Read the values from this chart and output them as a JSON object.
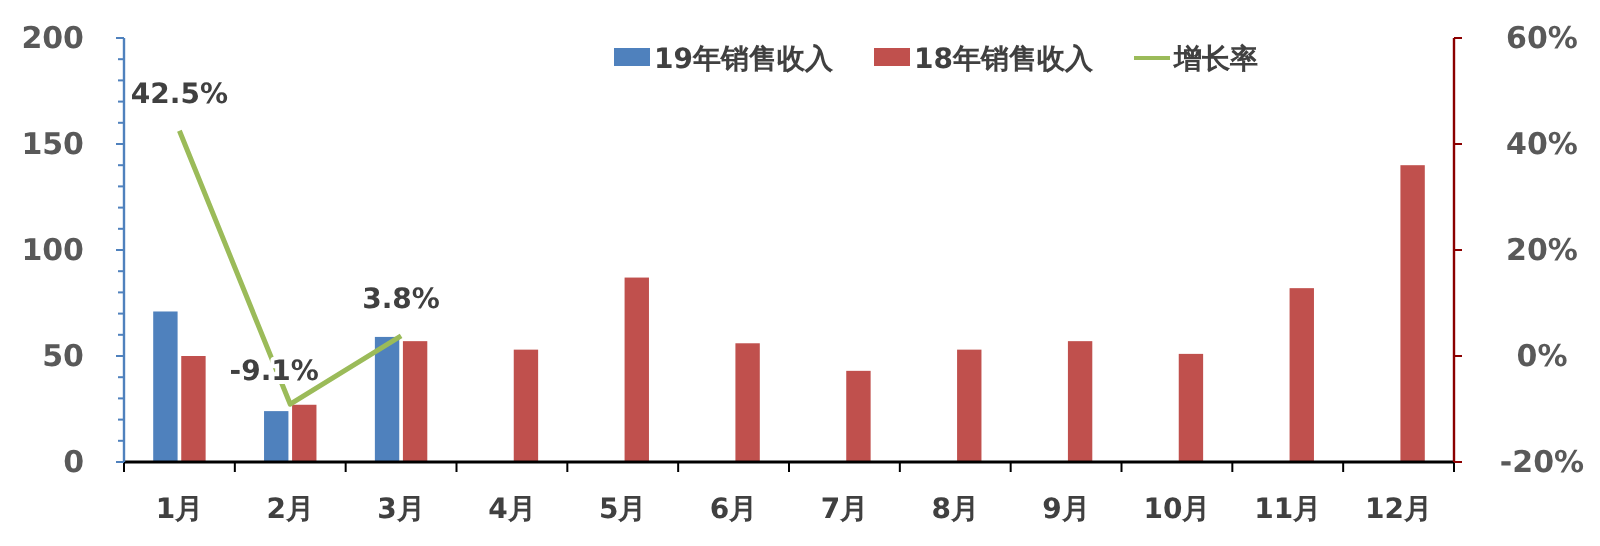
{
  "chart_data": {
    "type": "bar",
    "categories": [
      "1月",
      "2月",
      "3月",
      "4月",
      "5月",
      "6月",
      "7月",
      "8月",
      "9月",
      "10月",
      "11月",
      "12月"
    ],
    "series": [
      {
        "name": "19年销售收入",
        "color": "#4f81bd",
        "values": [
          71,
          24,
          59,
          null,
          null,
          null,
          null,
          null,
          null,
          null,
          null,
          null
        ]
      },
      {
        "name": "18年销售收入",
        "color": "#c0504d",
        "values": [
          50,
          27,
          57,
          53,
          87,
          56,
          43,
          53,
          57,
          51,
          82,
          140
        ]
      },
      {
        "name": "增长率",
        "type": "line",
        "axis": "y2",
        "color": "#9bbb59",
        "marker": "none",
        "values": [
          42.5,
          -9.1,
          3.8,
          null,
          null,
          null,
          null,
          null,
          null,
          null,
          null,
          null
        ],
        "value_labels": [
          "42.5%",
          "-9.1%",
          "3.8%",
          null,
          null,
          null,
          null,
          null,
          null,
          null,
          null,
          null
        ]
      }
    ],
    "ylim": [
      0,
      200
    ],
    "yticks": [
      0,
      {
        "value": 10,
        "label": null
      },
      {
        "value": 20,
        "label": null
      },
      {
        "value": 30,
        "label": null
      },
      {
        "value": 40,
        "label": null
      },
      50,
      {
        "value": 60,
        "label": null
      },
      {
        "value": 70,
        "label": null
      },
      {
        "value": 80,
        "label": null
      },
      {
        "value": 90,
        "label": null
      },
      100,
      {
        "value": 110,
        "label": null
      },
      {
        "value": 120,
        "label": null
      },
      {
        "value": 130,
        "label": null
      },
      {
        "value": 140,
        "label": null
      },
      150,
      {
        "value": 160,
        "label": null
      },
      {
        "value": 170,
        "label": null
      },
      {
        "value": 180,
        "label": null
      },
      {
        "value": 190,
        "label": null
      },
      200
    ],
    "y2lim": [
      -20,
      60
    ],
    "y2ticks": [
      {
        "value": -20,
        "label": "-20%"
      },
      {
        "value": 0,
        "label": "0%"
      },
      {
        "value": 20,
        "label": "20%"
      },
      {
        "value": 40,
        "label": "40%"
      },
      {
        "value": 60,
        "label": "60%"
      }
    ],
    "grid": false,
    "legend": "top right"
  }
}
